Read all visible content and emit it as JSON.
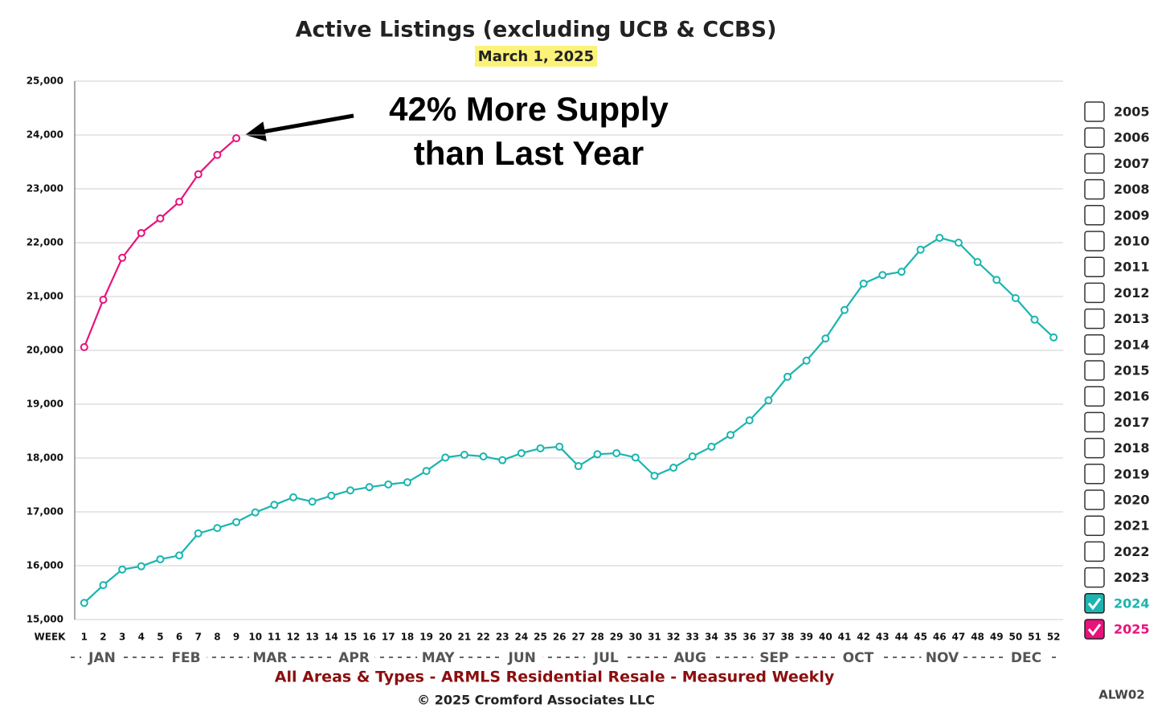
{
  "chart_data": {
    "type": "line",
    "title": "Active Listings (excluding UCB & CCBS)",
    "subtitle": "March 1, 2025",
    "annotation": [
      "42% More Supply",
      "than Last Year"
    ],
    "x_label": "WEEK",
    "x": [
      1,
      2,
      3,
      4,
      5,
      6,
      7,
      8,
      9,
      10,
      11,
      12,
      13,
      14,
      15,
      16,
      17,
      18,
      19,
      20,
      21,
      22,
      23,
      24,
      25,
      26,
      27,
      28,
      29,
      30,
      31,
      32,
      33,
      34,
      35,
      36,
      37,
      38,
      39,
      40,
      41,
      42,
      43,
      44,
      45,
      46,
      47,
      48,
      49,
      50,
      51,
      52
    ],
    "xlim": [
      0.5,
      52.5
    ],
    "xticks": [
      1,
      2,
      3,
      4,
      5,
      6,
      7,
      8,
      9,
      10,
      11,
      12,
      13,
      14,
      15,
      16,
      17,
      18,
      19,
      20,
      21,
      22,
      23,
      24,
      25,
      26,
      27,
      28,
      29,
      30,
      31,
      32,
      33,
      34,
      35,
      36,
      37,
      38,
      39,
      40,
      41,
      42,
      43,
      44,
      45,
      46,
      47,
      48,
      49,
      50,
      51,
      52
    ],
    "months": [
      "JAN",
      "FEB",
      "MAR",
      "APR",
      "MAY",
      "JUN",
      "JUL",
      "AUG",
      "SEP",
      "OCT",
      "NOV",
      "DEC"
    ],
    "ylim": [
      15000,
      25000
    ],
    "yticks": [
      {
        "value": 15000,
        "label": "15,000"
      },
      {
        "value": 16000,
        "label": "16,000"
      },
      {
        "value": 17000,
        "label": "17,000"
      },
      {
        "value": 18000,
        "label": "18,000"
      },
      {
        "value": 19000,
        "label": "19,000"
      },
      {
        "value": 20000,
        "label": "20,000"
      },
      {
        "value": 21000,
        "label": "21,000"
      },
      {
        "value": 22000,
        "label": "22,000"
      },
      {
        "value": 23000,
        "label": "23,000"
      },
      {
        "value": 24000,
        "label": "24,000"
      },
      {
        "value": 25000,
        "label": "25,000"
      }
    ],
    "grid": true,
    "legend_unchecked": [
      "2005",
      "2006",
      "2007",
      "2008",
      "2009",
      "2010",
      "2011",
      "2012",
      "2013",
      "2014",
      "2015",
      "2016",
      "2017",
      "2018",
      "2019",
      "2020",
      "2021",
      "2022",
      "2023"
    ],
    "series": [
      {
        "name": "2024",
        "color": "#1ab5b0",
        "values": [
          15310,
          15640,
          15930,
          15990,
          16120,
          16190,
          16600,
          16700,
          16810,
          16990,
          17130,
          17270,
          17190,
          17300,
          17400,
          17460,
          17510,
          17550,
          17760,
          18010,
          18060,
          18030,
          17960,
          18090,
          18180,
          18210,
          17850,
          18070,
          18090,
          18010,
          17670,
          17820,
          18030,
          18210,
          18430,
          18700,
          19070,
          19510,
          19810,
          20220,
          20750,
          21240,
          21400,
          21460,
          21870,
          22090,
          22000,
          21640,
          21310,
          20970,
          20570,
          20240
        ]
      },
      {
        "name": "2025",
        "color": "#e8127c",
        "values": [
          20060,
          20940,
          21720,
          22180,
          22450,
          22760,
          23270,
          23630,
          23940,
          null,
          null,
          null,
          null,
          null,
          null,
          null,
          null,
          null,
          null,
          null,
          null,
          null,
          null,
          null,
          null,
          null,
          null,
          null,
          null,
          null,
          null,
          null,
          null,
          null,
          null,
          null,
          null,
          null,
          null,
          null,
          null,
          null,
          null,
          null,
          null,
          null,
          null,
          null,
          null,
          null,
          null,
          null
        ]
      }
    ],
    "footer": "All Areas & Types - ARMLS Residential Resale - Measured Weekly",
    "copyright": "© 2025 Cromford Associates LLC",
    "code": "ALW02"
  }
}
